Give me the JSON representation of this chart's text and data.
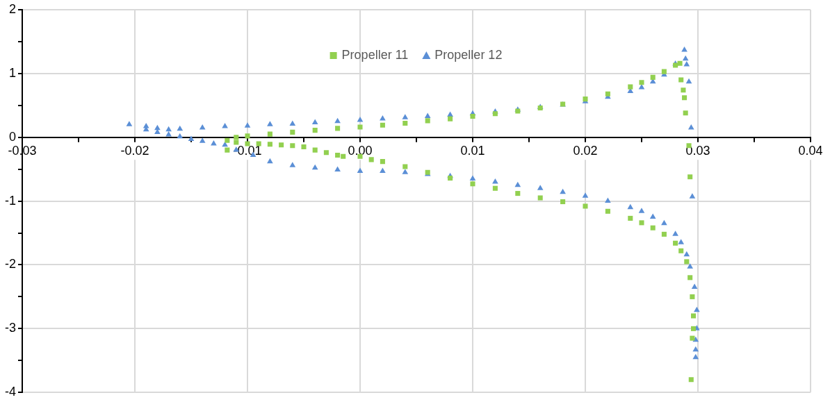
{
  "chart_data": {
    "type": "scatter",
    "legend": "top",
    "grid": true,
    "xlim": [
      -0.03,
      0.04
    ],
    "xticks": [
      -0.03,
      {
        "value": -0.025,
        "label": null
      },
      -0.02,
      {
        "value": -0.015,
        "label": null
      },
      -0.01,
      {
        "value": -0.005,
        "label": null
      },
      {
        "value": 0,
        "label": "0.00"
      },
      {
        "value": 0.005,
        "label": null
      },
      0.01,
      {
        "value": 0.015,
        "label": null
      },
      0.02,
      {
        "value": 0.025,
        "label": null
      },
      0.03,
      {
        "value": 0.035,
        "label": null
      },
      0.04
    ],
    "ylim": [
      -4,
      2
    ],
    "yticks": [
      -4,
      {
        "value": -3.5,
        "label": null
      },
      -3,
      {
        "value": -2.5,
        "label": null
      },
      -2,
      {
        "value": -1.5,
        "label": null
      },
      -1,
      {
        "value": -0.5,
        "label": null
      },
      0,
      {
        "value": 0.5,
        "label": null
      },
      1,
      {
        "value": 1.5,
        "label": null
      },
      2
    ],
    "series": [
      {
        "name": "Propeller 11",
        "color": "#92d050",
        "marker": "square",
        "x": [
          -0.0118,
          -0.0118,
          -0.011,
          -0.01,
          -0.009,
          -0.008,
          -0.007,
          -0.006,
          -0.005,
          -0.004,
          -0.003,
          -0.002,
          -0.0015,
          -0.011,
          -0.01,
          -0.008,
          -0.006,
          -0.004,
          -0.002,
          0,
          0.002,
          0.004,
          0.006,
          0.008,
          0.01,
          0.012,
          0.014,
          0.016,
          0.018,
          0.02,
          0.022,
          0.024,
          0.025,
          0.026,
          0.027,
          0.028,
          0.0284,
          0.0285,
          0.0287,
          0.0288,
          0.0289,
          0.0292,
          0.0293,
          0,
          0.001,
          0.002,
          0.004,
          0.006,
          0.008,
          0.01,
          0.012,
          0.014,
          0.016,
          0.018,
          0.02,
          0.022,
          0.024,
          0.025,
          0.026,
          0.027,
          0.028,
          0.0285,
          0.029,
          0.0293,
          0.0295,
          0.0296,
          0.0296,
          0.0295,
          0.0294
        ],
        "values": [
          -0.2,
          -0.05,
          -0.08,
          -0.1,
          -0.1,
          -0.11,
          -0.12,
          -0.13,
          -0.15,
          -0.2,
          -0.24,
          -0.28,
          -0.3,
          0,
          0.02,
          0.05,
          0.08,
          0.11,
          0.14,
          0.16,
          0.19,
          0.22,
          0.26,
          0.29,
          0.33,
          0.37,
          0.41,
          0.46,
          0.52,
          0.6,
          0.68,
          0.79,
          0.86,
          0.94,
          1.03,
          1.13,
          1.16,
          0.9,
          0.74,
          0.62,
          0.38,
          -0.13,
          -0.62,
          -0.3,
          -0.35,
          -0.38,
          -0.46,
          -0.55,
          -0.64,
          -0.73,
          -0.8,
          -0.88,
          -0.95,
          -1.01,
          -1.08,
          -1.16,
          -1.27,
          -1.34,
          -1.42,
          -1.52,
          -1.66,
          -1.78,
          -1.95,
          -2.2,
          -2.5,
          -2.8,
          -3.0,
          -3.15,
          -3.8
        ]
      },
      {
        "name": "Propeller 12",
        "color": "#5b8fd6",
        "marker": "triangle",
        "x": [
          -0.0205,
          -0.019,
          -0.018,
          -0.017,
          -0.016,
          -0.014,
          -0.012,
          -0.01,
          -0.008,
          -0.006,
          -0.004,
          -0.002,
          0,
          0.002,
          0.004,
          0.006,
          0.008,
          0.01,
          0.012,
          0.014,
          0.016,
          0.018,
          0.02,
          0.022,
          0.024,
          0.025,
          0.026,
          0.027,
          0.028,
          0.0288,
          0.0289,
          0.029,
          0.0292,
          0.0294,
          0.0295,
          -0.019,
          -0.018,
          -0.017,
          -0.016,
          -0.015,
          -0.014,
          -0.013,
          -0.012,
          -0.011,
          -0.0095,
          -0.008,
          -0.006,
          -0.004,
          -0.002,
          0,
          0.002,
          0.004,
          0.006,
          0.008,
          0.01,
          0.012,
          0.014,
          0.016,
          0.018,
          0.02,
          0.022,
          0.024,
          0.025,
          0.026,
          0.027,
          0.028,
          0.0285,
          0.029,
          0.0293,
          0.0297,
          0.0299,
          0.0299,
          0.0298,
          0.0298,
          0.0298
        ],
        "values": [
          0.2,
          0.17,
          0.14,
          0.12,
          0.13,
          0.15,
          0.17,
          0.18,
          0.2,
          0.21,
          0.23,
          0.25,
          0.27,
          0.29,
          0.31,
          0.33,
          0.35,
          0.37,
          0.4,
          0.43,
          0.47,
          0.51,
          0.56,
          0.63,
          0.72,
          0.78,
          0.87,
          0.98,
          1.15,
          1.37,
          1.23,
          1.14,
          0.87,
          0.15,
          -0.93,
          0.12,
          0.08,
          0.04,
          0.01,
          -0.03,
          -0.06,
          -0.1,
          -0.12,
          -0.2,
          -0.28,
          -0.38,
          -0.44,
          -0.48,
          -0.51,
          -0.53,
          -0.53,
          -0.55,
          -0.58,
          -0.61,
          -0.65,
          -0.7,
          -0.75,
          -0.8,
          -0.86,
          -0.92,
          -1.0,
          -1.1,
          -1.16,
          -1.25,
          -1.35,
          -1.52,
          -1.65,
          -1.84,
          -2.03,
          -2.35,
          -2.71,
          -3.0,
          -3.18,
          -3.33,
          -3.45
        ]
      }
    ]
  }
}
